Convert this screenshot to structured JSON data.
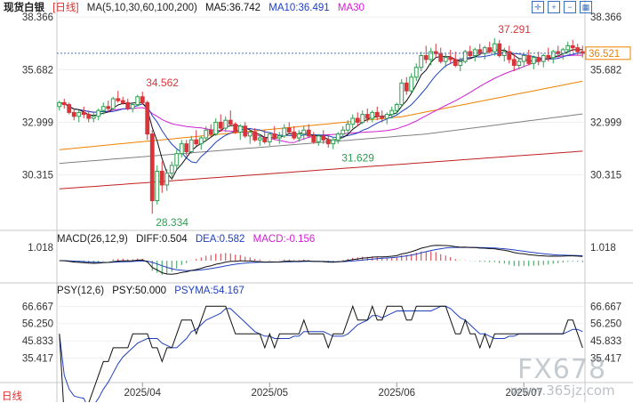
{
  "header": {
    "symbol": "现货白银",
    "period": "[日线]",
    "ma_params": "MA(5,10,30,60,100,200)",
    "ma5": "MA5:36.742",
    "ma10": "MA10:36.491",
    "ma30": "MA30",
    "tool_icons": [
      "crosshair-icon",
      "zoom-in-icon",
      "zoom-out-icon",
      "grid-icon",
      "settings-icon"
    ]
  },
  "macd_label": {
    "params": "MACD(26,12,9)",
    "diff": "DIFF:0.504",
    "dea": "DEA:0.582",
    "macd": "MACD:-0.156"
  },
  "psy_label": {
    "params": "PSY(12,6)",
    "psy": "PSY:50.000",
    "psyma": "PSYMA:54.167"
  },
  "footer": {
    "period": "日线"
  },
  "watermark": {
    "brand": "FX678",
    "site": "www.365jz.com"
  },
  "colors": {
    "up": "#2e9e52",
    "down": "#d9343a",
    "ma5": "#111111",
    "ma10": "#2040c0",
    "ma30": "#d020d0",
    "ma60": "#f08000",
    "ma100": "#808080",
    "ma200": "#c02020",
    "current": "#f08000"
  },
  "chart_data": [
    {
      "type": "candlestick",
      "title": "现货白银 日线",
      "y_ticks": [
        "38.366",
        "35.682",
        "32.999",
        "30.315"
      ],
      "ylim": [
        27.8,
        38.6
      ],
      "x_ticks": [
        "2025/04",
        "2025/05",
        "2025/06",
        "2025/07"
      ],
      "annotations": [
        {
          "label": "34.562",
          "index": 17
        },
        {
          "label": "37.291",
          "index": 89
        },
        {
          "label": "28.334",
          "index": 19
        },
        {
          "label": "31.629",
          "index": 57
        }
      ],
      "current_price": "36.521",
      "candles": [
        [
          33.8,
          34.1,
          33.6,
          34.0
        ],
        [
          34.0,
          34.2,
          33.7,
          33.9
        ],
        [
          33.9,
          34.0,
          33.4,
          33.5
        ],
        [
          33.5,
          33.7,
          33.1,
          33.3
        ],
        [
          33.3,
          33.6,
          33.0,
          33.5
        ],
        [
          33.5,
          33.8,
          33.2,
          33.4
        ],
        [
          33.4,
          33.6,
          33.0,
          33.2
        ],
        [
          33.2,
          33.5,
          33.0,
          33.3
        ],
        [
          33.3,
          33.7,
          33.1,
          33.6
        ],
        [
          33.6,
          34.0,
          33.4,
          33.8
        ],
        [
          33.8,
          34.1,
          33.5,
          33.7
        ],
        [
          33.7,
          34.3,
          33.6,
          34.2
        ],
        [
          34.2,
          34.6,
          34.0,
          34.1
        ],
        [
          34.1,
          34.3,
          33.9,
          34.0
        ],
        [
          34.0,
          34.2,
          33.6,
          33.7
        ],
        [
          33.7,
          34.0,
          33.5,
          33.9
        ],
        [
          33.9,
          34.4,
          33.8,
          34.3
        ],
        [
          34.3,
          34.56,
          33.9,
          34.0
        ],
        [
          34.0,
          34.1,
          32.1,
          32.4
        ],
        [
          32.4,
          32.6,
          28.33,
          29.0
        ],
        [
          29.0,
          30.8,
          28.8,
          30.5
        ],
        [
          30.5,
          31.0,
          29.4,
          29.8
        ],
        [
          29.8,
          30.6,
          29.5,
          30.4
        ],
        [
          30.4,
          31.0,
          30.1,
          30.8
        ],
        [
          30.8,
          31.6,
          30.6,
          31.4
        ],
        [
          31.4,
          32.1,
          31.2,
          31.9
        ],
        [
          31.9,
          32.1,
          31.3,
          31.5
        ],
        [
          31.5,
          32.3,
          31.4,
          32.1
        ],
        [
          32.1,
          32.6,
          31.8,
          31.9
        ],
        [
          31.9,
          32.3,
          31.6,
          32.2
        ],
        [
          32.2,
          32.8,
          32.0,
          32.6
        ],
        [
          32.6,
          32.9,
          32.2,
          32.4
        ],
        [
          32.4,
          33.2,
          32.3,
          33.0
        ],
        [
          33.0,
          33.4,
          32.5,
          32.7
        ],
        [
          32.7,
          33.3,
          32.5,
          33.1
        ],
        [
          33.1,
          33.6,
          32.8,
          32.9
        ],
        [
          32.9,
          33.0,
          32.4,
          32.5
        ],
        [
          32.5,
          32.9,
          32.1,
          32.8
        ],
        [
          32.8,
          33.0,
          32.2,
          32.3
        ],
        [
          32.3,
          32.6,
          31.9,
          32.5
        ],
        [
          32.5,
          32.7,
          32.0,
          32.1
        ],
        [
          32.1,
          32.4,
          31.8,
          32.2
        ],
        [
          32.2,
          32.6,
          31.9,
          32.0
        ],
        [
          32.0,
          32.5,
          31.8,
          32.4
        ],
        [
          32.4,
          32.8,
          32.1,
          32.2
        ],
        [
          32.2,
          32.5,
          31.9,
          32.3
        ],
        [
          32.3,
          32.9,
          32.2,
          32.7
        ],
        [
          32.7,
          33.0,
          32.4,
          32.5
        ],
        [
          32.5,
          32.8,
          32.1,
          32.2
        ],
        [
          32.2,
          32.6,
          32.0,
          32.4
        ],
        [
          32.4,
          32.8,
          32.1,
          32.6
        ],
        [
          32.6,
          32.9,
          32.2,
          32.3
        ],
        [
          32.3,
          32.5,
          31.9,
          32.0
        ],
        [
          32.0,
          32.4,
          31.8,
          32.3
        ],
        [
          32.3,
          32.6,
          31.9,
          32.1
        ],
        [
          32.1,
          32.4,
          31.7,
          31.9
        ],
        [
          31.9,
          32.2,
          31.63,
          32.1
        ],
        [
          32.1,
          32.5,
          31.9,
          32.4
        ],
        [
          32.4,
          32.8,
          32.2,
          32.6
        ],
        [
          32.6,
          33.1,
          32.4,
          32.9
        ],
        [
          32.9,
          33.4,
          32.7,
          33.2
        ],
        [
          33.2,
          33.5,
          32.8,
          33.0
        ],
        [
          33.0,
          33.6,
          32.9,
          33.4
        ],
        [
          33.4,
          33.7,
          33.0,
          33.2
        ],
        [
          33.2,
          33.6,
          33.0,
          33.5
        ],
        [
          33.5,
          33.8,
          33.1,
          33.3
        ],
        [
          33.3,
          33.6,
          33.0,
          33.2
        ],
        [
          33.2,
          33.5,
          32.9,
          33.4
        ],
        [
          33.4,
          33.8,
          33.2,
          33.6
        ],
        [
          33.6,
          34.0,
          33.4,
          33.9
        ],
        [
          33.9,
          35.2,
          33.8,
          35.0
        ],
        [
          35.0,
          35.3,
          34.4,
          34.6
        ],
        [
          34.6,
          35.5,
          34.5,
          35.3
        ],
        [
          35.3,
          36.0,
          35.1,
          35.8
        ],
        [
          35.8,
          36.6,
          35.6,
          36.4
        ],
        [
          36.4,
          36.9,
          36.0,
          36.2
        ],
        [
          36.2,
          36.8,
          35.9,
          36.6
        ],
        [
          36.6,
          37.0,
          36.3,
          36.5
        ],
        [
          36.5,
          36.8,
          36.0,
          36.1
        ],
        [
          36.1,
          36.5,
          35.8,
          36.3
        ],
        [
          36.3,
          36.7,
          36.0,
          36.2
        ],
        [
          36.2,
          36.6,
          35.8,
          35.9
        ],
        [
          35.9,
          36.3,
          35.6,
          36.1
        ],
        [
          36.1,
          36.7,
          36.0,
          36.6
        ],
        [
          36.6,
          36.9,
          36.3,
          36.4
        ],
        [
          36.4,
          36.8,
          36.1,
          36.7
        ],
        [
          36.7,
          37.0,
          36.4,
          36.5
        ],
        [
          36.5,
          36.9,
          36.2,
          36.8
        ],
        [
          36.8,
          37.1,
          36.5,
          36.6
        ],
        [
          36.6,
          37.29,
          36.4,
          37.0
        ],
        [
          37.0,
          37.2,
          36.3,
          36.4
        ],
        [
          36.4,
          36.8,
          36.1,
          36.6
        ],
        [
          36.6,
          36.9,
          36.0,
          36.2
        ],
        [
          36.2,
          36.5,
          35.6,
          35.9
        ],
        [
          35.9,
          36.3,
          35.7,
          36.1
        ],
        [
          36.1,
          36.5,
          35.8,
          36.4
        ],
        [
          36.4,
          36.7,
          35.9,
          36.0
        ],
        [
          36.0,
          36.4,
          35.7,
          36.3
        ],
        [
          36.3,
          36.6,
          35.9,
          36.1
        ],
        [
          36.1,
          36.5,
          35.8,
          36.4
        ],
        [
          36.4,
          36.8,
          36.1,
          36.3
        ],
        [
          36.3,
          36.7,
          36.0,
          36.6
        ],
        [
          36.6,
          36.9,
          36.3,
          36.5
        ],
        [
          36.5,
          36.8,
          36.2,
          36.7
        ],
        [
          36.7,
          37.1,
          36.5,
          36.9
        ],
        [
          36.9,
          37.2,
          36.6,
          36.8
        ],
        [
          36.8,
          37.0,
          36.4,
          36.6
        ],
        [
          36.6,
          36.9,
          36.3,
          36.52
        ]
      ],
      "series": [
        {
          "name": "MA5"
        },
        {
          "name": "MA10"
        },
        {
          "name": "MA30"
        },
        {
          "name": "MA60"
        },
        {
          "name": "MA100"
        },
        {
          "name": "MA200"
        }
      ]
    },
    {
      "type": "macd",
      "title": "MACD(26,12,9)",
      "y_ticks": [
        "1.018"
      ],
      "series": [
        {
          "name": "DIFF"
        },
        {
          "name": "DEA"
        },
        {
          "name": "MACD"
        }
      ]
    },
    {
      "type": "line",
      "title": "PSY(12,6)",
      "y_ticks": [
        "66.667",
        "56.250",
        "45.833",
        "35.417"
      ],
      "ylim": [
        26.0,
        69.0
      ],
      "series": [
        {
          "name": "PSY"
        },
        {
          "name": "PSYMA"
        }
      ]
    }
  ]
}
